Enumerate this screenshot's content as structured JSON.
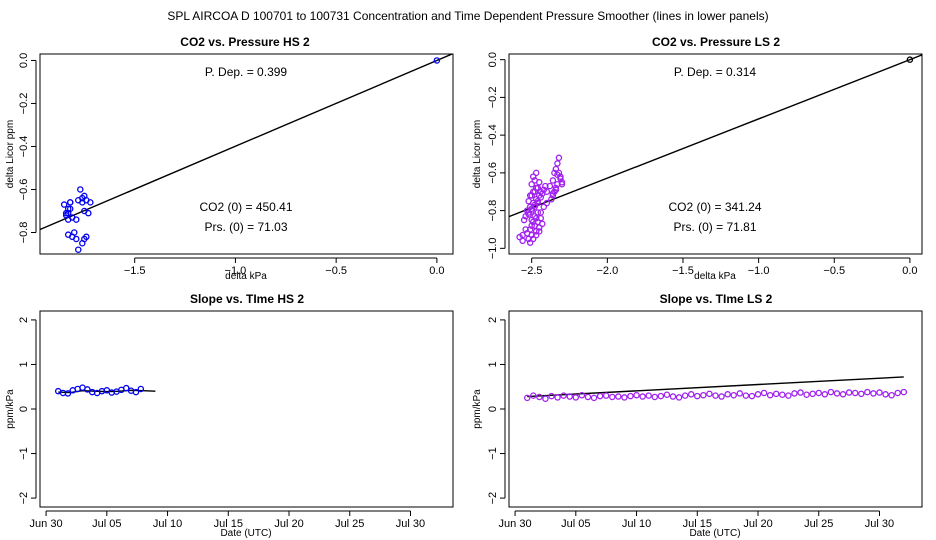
{
  "figure": {
    "title": "SPL   AIRCOA D   100701 to 100731   Concentration and Time Dependent Pressure Smoother (lines in lower panels)"
  },
  "colors": {
    "hs": "#0000ee",
    "ls": "#a020f0",
    "line": "#000000"
  },
  "chart_data": [
    {
      "id": "p1",
      "type": "scatter",
      "title": "CO2 vs. Pressure HS 2",
      "xlabel": "delta kPa",
      "ylabel": "delta Licor ppm",
      "xlim": [
        -1.97,
        0.08
      ],
      "ylim": [
        -0.9,
        0.03
      ],
      "xticks": [
        -1.5,
        -1.0,
        -0.5,
        0.0
      ],
      "xtick_labels": [
        "−1.5",
        "−1.0",
        "−0.5",
        "0.0"
      ],
      "yticks": [
        0.0,
        -0.2,
        -0.4,
        -0.6,
        -0.8
      ],
      "ytick_labels": [
        "0.0",
        "−0.2",
        "−0.4",
        "−0.6",
        "−0.8"
      ],
      "annotations": {
        "p_dep": "P. Dep. =  0.399",
        "co2_0": "CO2 (0) =  450.41",
        "prs_0": "Prs. (0) =  71.03"
      },
      "fit_line": {
        "slope": 0.399,
        "intercept": 0.0
      },
      "series": [
        {
          "color": "#0000ee",
          "x": [
            0.0
          ],
          "y": [
            0.0
          ]
        },
        {
          "color": "#0000ee",
          "x": [
            -1.85,
            -1.84,
            -1.83,
            -1.82,
            -1.83,
            -1.81,
            -1.8,
            -1.82,
            -1.83,
            -1.79,
            -1.78,
            -1.77,
            -1.76,
            -1.75,
            -1.74,
            -1.75,
            -1.74,
            -1.76,
            -1.78,
            -1.73,
            -1.72,
            -1.83,
            -1.82,
            -1.81,
            -1.79,
            -1.76,
            -1.75,
            -1.84
          ],
          "y": [
            -0.67,
            -0.72,
            -0.69,
            -0.66,
            -0.81,
            -0.82,
            -0.8,
            -0.66,
            -0.71,
            -0.74,
            -0.65,
            -0.6,
            -0.64,
            -0.83,
            -0.82,
            -0.7,
            -0.65,
            -0.85,
            -0.88,
            -0.71,
            -0.66,
            -0.74,
            -0.69,
            -0.73,
            -0.83,
            -0.66,
            -0.63,
            -0.71
          ]
        }
      ]
    },
    {
      "id": "p2",
      "type": "scatter",
      "title": "CO2 vs. Pressure LS 2",
      "xlabel": "delta kPa",
      "ylabel": "delta Licor ppm",
      "xlim": [
        -2.65,
        0.08
      ],
      "ylim": [
        -1.03,
        0.03
      ],
      "xticks": [
        -2.5,
        -2.0,
        -1.5,
        -1.0,
        -0.5,
        0.0
      ],
      "xtick_labels": [
        "−2.5",
        "−2.0",
        "−1.5",
        "−1.0",
        "−0.5",
        "0.0"
      ],
      "yticks": [
        0.0,
        -0.2,
        -0.4,
        -0.6,
        -0.8,
        -1.0
      ],
      "ytick_labels": [
        "0.0",
        "−0.2",
        "−0.4",
        "−0.6",
        "−0.8",
        "−1.0"
      ],
      "annotations": {
        "p_dep": "P. Dep. =  0.314",
        "co2_0": "CO2 (0) =  341.24",
        "prs_0": "Prs. (0) =  71.81"
      },
      "fit_line": {
        "slope": 0.314,
        "intercept": 0.0
      },
      "series": [
        {
          "color": "#000000",
          "x": [
            0.0
          ],
          "y": [
            0.0
          ]
        },
        {
          "color": "#a020f0",
          "x": [
            -2.52,
            -2.5,
            -2.48,
            -2.46,
            -2.53,
            -2.51,
            -2.49,
            -2.47,
            -2.45,
            -2.55,
            -2.54,
            -2.52,
            -2.5,
            -2.48,
            -2.46,
            -2.44,
            -2.43,
            -2.42,
            -2.41,
            -2.5,
            -2.49,
            -2.47,
            -2.53,
            -2.51,
            -2.48,
            -2.46,
            -2.44,
            -2.52,
            -2.5,
            -2.47,
            -2.45,
            -2.43,
            -2.51,
            -2.49,
            -2.47,
            -2.45,
            -2.56,
            -2.54,
            -2.5,
            -2.48,
            -2.46,
            -2.44,
            -2.52,
            -2.5,
            -2.48,
            -2.46,
            -2.49,
            -2.47,
            -2.45,
            -2.5,
            -2.48,
            -2.46,
            -2.51,
            -2.49,
            -2.47,
            -2.4,
            -2.38,
            -2.36,
            -2.35,
            -2.34,
            -2.33,
            -2.32,
            -2.31,
            -2.3,
            -2.36,
            -2.34,
            -2.33,
            -2.31,
            -2.35,
            -2.37,
            -2.33,
            -2.32,
            -2.3,
            -2.34,
            -2.36,
            -2.58,
            -2.56,
            -2.42,
            -2.44,
            -2.4
          ],
          "y": [
            -0.75,
            -0.72,
            -0.7,
            -0.68,
            -0.8,
            -0.78,
            -0.76,
            -0.74,
            -0.72,
            -0.85,
            -0.83,
            -0.81,
            -0.79,
            -0.77,
            -0.75,
            -0.73,
            -0.71,
            -0.69,
            -0.67,
            -0.88,
            -0.86,
            -0.84,
            -0.92,
            -0.9,
            -0.88,
            -0.86,
            -0.84,
            -0.95,
            -0.93,
            -0.91,
            -0.89,
            -0.87,
            -0.97,
            -0.95,
            -0.93,
            -0.91,
            -0.93,
            -0.9,
            -0.66,
            -0.64,
            -0.68,
            -0.7,
            -0.82,
            -0.8,
            -0.78,
            -0.76,
            -0.62,
            -0.6,
            -0.65,
            -0.85,
            -0.83,
            -0.81,
            -0.72,
            -0.7,
            -0.68,
            -0.7,
            -0.67,
            -0.64,
            -0.6,
            -0.58,
            -0.55,
            -0.52,
            -0.62,
            -0.65,
            -0.72,
            -0.69,
            -0.66,
            -0.63,
            -0.7,
            -0.74,
            -0.61,
            -0.6,
            -0.66,
            -0.68,
            -0.71,
            -0.94,
            -0.96,
            -0.78,
            -0.81,
            -0.76
          ]
        }
      ]
    },
    {
      "id": "p3",
      "type": "scatter",
      "title": "Slope vs. TIme HS 2",
      "xlabel": "Date (UTC)",
      "ylabel": "ppm/kPa",
      "xlim": [
        -0.5,
        33.5
      ],
      "ylim": [
        -2.2,
        2.2
      ],
      "xticks": [
        0,
        5,
        10,
        15,
        20,
        25,
        30
      ],
      "xtick_labels": [
        "Jun 30",
        "Jul 05",
        "Jul 10",
        "Jul 15",
        "Jul 20",
        "Jul 25",
        "Jul 30"
      ],
      "yticks": [
        -2,
        -1,
        0,
        1,
        2
      ],
      "ytick_labels": [
        "−2",
        "−1",
        "0",
        "1",
        "2"
      ],
      "smoother": {
        "x": [
          1.0,
          2.0,
          3.0,
          4.0,
          5.0,
          6.0,
          7.0,
          8.0,
          9.0
        ],
        "y": [
          0.38,
          0.37,
          0.41,
          0.4,
          0.39,
          0.4,
          0.42,
          0.41,
          0.4
        ]
      },
      "series": [
        {
          "color": "#0000ee",
          "x": [
            1.0,
            1.4,
            1.8,
            2.2,
            2.6,
            3.0,
            3.4,
            3.8,
            4.2,
            4.6,
            5.0,
            5.4,
            5.8,
            6.2,
            6.6,
            7.0,
            7.4,
            7.8
          ],
          "y": [
            0.4,
            0.36,
            0.35,
            0.42,
            0.45,
            0.48,
            0.44,
            0.38,
            0.36,
            0.4,
            0.42,
            0.37,
            0.39,
            0.43,
            0.47,
            0.41,
            0.38,
            0.45
          ]
        }
      ]
    },
    {
      "id": "p4",
      "type": "scatter",
      "title": "Slope vs. TIme LS 2",
      "xlabel": "Date (UTC)",
      "ylabel": "ppm/kPa",
      "xlim": [
        -0.5,
        33.5
      ],
      "ylim": [
        -2.2,
        2.2
      ],
      "xticks": [
        0,
        5,
        10,
        15,
        20,
        25,
        30
      ],
      "xtick_labels": [
        "Jun 30",
        "Jul 05",
        "Jul 10",
        "Jul 15",
        "Jul 20",
        "Jul 25",
        "Jul 30"
      ],
      "yticks": [
        -2,
        -1,
        0,
        1,
        2
      ],
      "ytick_labels": [
        "−2",
        "−1",
        "0",
        "1",
        "2"
      ],
      "smoother": {
        "x": [
          1.0,
          32.0
        ],
        "y": [
          0.28,
          0.72
        ]
      },
      "series": [
        {
          "color": "#a020f0",
          "x": [
            1.0,
            1.5,
            2.0,
            2.5,
            3.0,
            3.5,
            4.0,
            4.5,
            5.0,
            5.5,
            6.0,
            6.5,
            7.0,
            7.5,
            8.0,
            8.5,
            9.0,
            9.5,
            10.0,
            10.5,
            11.0,
            11.5,
            12.0,
            12.5,
            13.0,
            13.5,
            14.0,
            14.5,
            15.0,
            15.5,
            16.0,
            16.5,
            17.0,
            17.5,
            18.0,
            18.5,
            19.0,
            19.5,
            20.0,
            20.5,
            21.0,
            21.5,
            22.0,
            22.5,
            23.0,
            23.5,
            24.0,
            24.5,
            25.0,
            25.5,
            26.0,
            26.5,
            27.0,
            27.5,
            28.0,
            28.5,
            29.0,
            29.5,
            30.0,
            30.5,
            31.0,
            31.5,
            32.0
          ],
          "y": [
            0.25,
            0.3,
            0.27,
            0.23,
            0.29,
            0.26,
            0.3,
            0.28,
            0.26,
            0.31,
            0.27,
            0.25,
            0.29,
            0.3,
            0.27,
            0.28,
            0.26,
            0.29,
            0.31,
            0.28,
            0.3,
            0.27,
            0.29,
            0.32,
            0.28,
            0.26,
            0.3,
            0.33,
            0.29,
            0.31,
            0.34,
            0.3,
            0.28,
            0.33,
            0.31,
            0.35,
            0.3,
            0.29,
            0.33,
            0.36,
            0.31,
            0.34,
            0.32,
            0.3,
            0.35,
            0.37,
            0.32,
            0.34,
            0.36,
            0.33,
            0.38,
            0.35,
            0.33,
            0.37,
            0.36,
            0.34,
            0.38,
            0.35,
            0.37,
            0.33,
            0.31,
            0.36,
            0.38
          ]
        }
      ]
    }
  ]
}
